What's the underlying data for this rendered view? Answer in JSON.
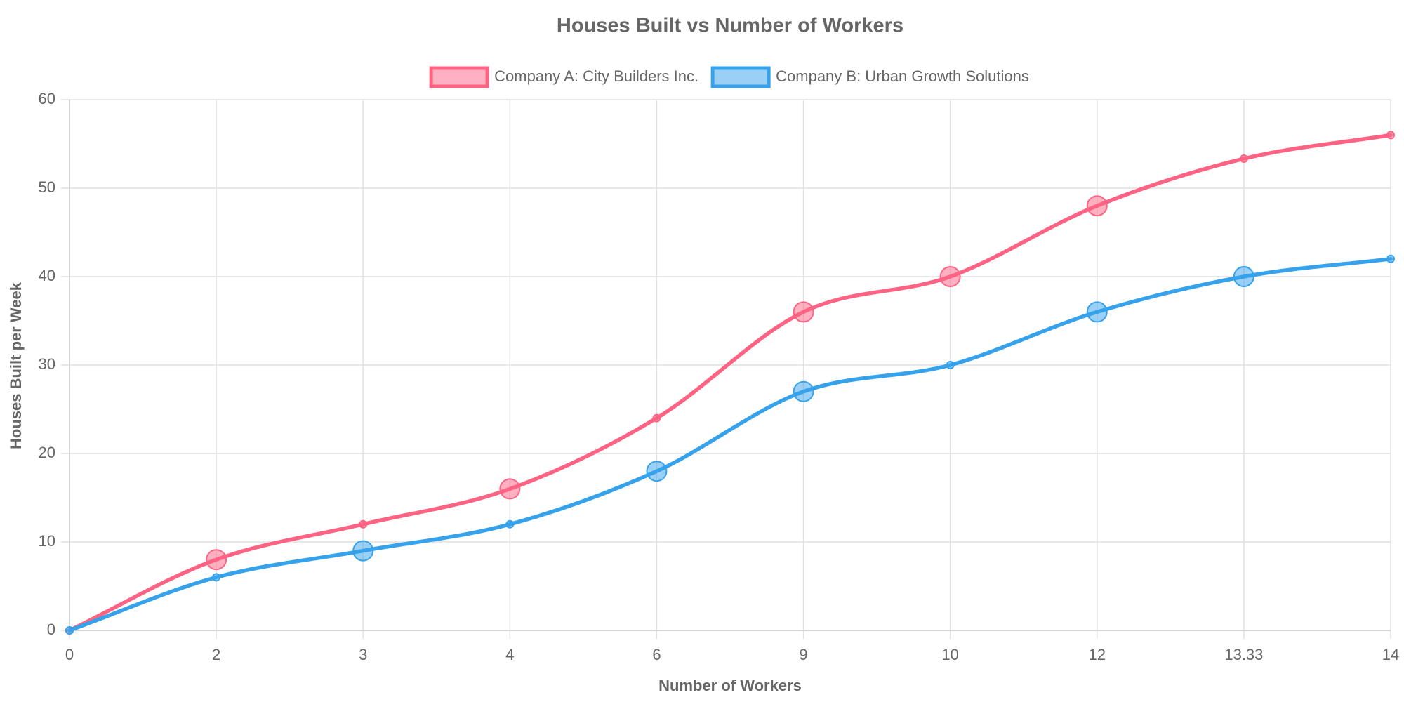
{
  "chart_data": {
    "type": "line",
    "title": "Houses Built vs Number of Workers",
    "xlabel": "Number of Workers",
    "ylabel": "Houses Built per Week",
    "categories": [
      "0",
      "2",
      "3",
      "4",
      "6",
      "9",
      "10",
      "12",
      "13.33",
      "14"
    ],
    "ylim": [
      0,
      60
    ],
    "yticks": [
      0,
      10,
      20,
      30,
      40,
      50,
      60
    ],
    "grid": true,
    "legend_position": "top",
    "series": [
      {
        "name": "Company A: City Builders Inc.",
        "color": "#ff6384",
        "fill": "rgba(255,99,132,0.5)",
        "values": [
          0,
          8,
          12,
          16,
          24,
          36,
          40,
          48,
          53.33,
          56
        ],
        "highlighted": [
          false,
          true,
          false,
          true,
          false,
          true,
          true,
          true,
          false,
          false
        ]
      },
      {
        "name": "Company B: Urban Growth Solutions",
        "color": "#36a2eb",
        "fill": "rgba(54,162,235,0.5)",
        "values": [
          0,
          6,
          9,
          12,
          18,
          27,
          30,
          36,
          40,
          42
        ],
        "highlighted": [
          false,
          false,
          true,
          false,
          true,
          true,
          false,
          true,
          true,
          false
        ]
      }
    ]
  }
}
